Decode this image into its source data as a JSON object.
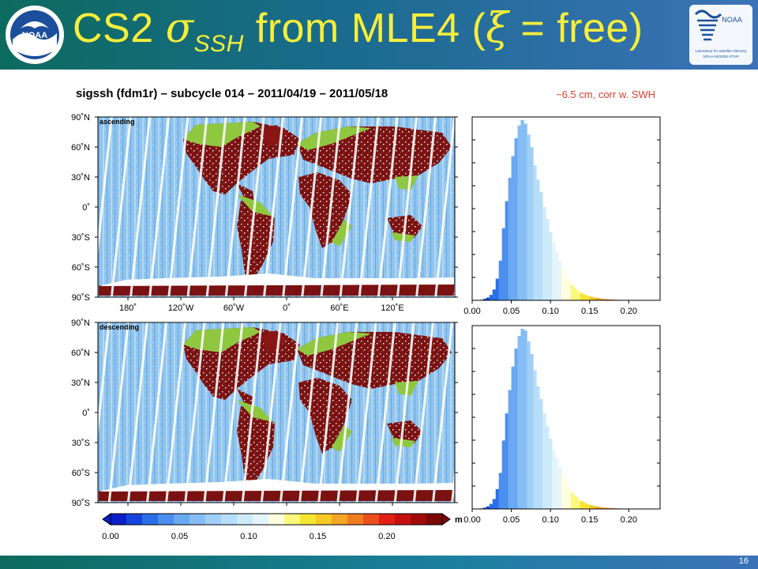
{
  "header": {
    "title_prefix": "CS2 ",
    "title_sigma": "σ",
    "title_sub": "SSH",
    "title_mid": " from MLE4 (",
    "title_xi": "ξ",
    "title_suffix": " = free)",
    "logo_left": "noaa-emblem-icon",
    "logo_right_text": "NOAA",
    "logo_right_caption1": "Laboratory for Satellite Altimetry",
    "logo_right_caption2": "NOAA-NESDIS-STAR"
  },
  "figure_title": "sigssh (fdm1r) – subcycle 014 – 2011/04/19 – 2011/05/18",
  "note": "~6.5 cm, corr w. SWH",
  "page_number": "16",
  "maps": [
    {
      "label": "ascending"
    },
    {
      "label": "descending"
    }
  ],
  "lat_ticks": [
    "90˚N",
    "60˚N",
    "30˚N",
    "0˚",
    "30˚S",
    "60˚S",
    "90˚S"
  ],
  "lon_ticks": [
    "180˚",
    "120˚W",
    "60˚W",
    "0˚",
    "60˚E",
    "120˚E"
  ],
  "colorbar": {
    "unit": "m",
    "ticks": [
      "0.00",
      "0.05",
      "0.10",
      "0.15",
      "0.20"
    ],
    "colors": [
      "#0b1fc9",
      "#1444dd",
      "#2a6ee8",
      "#4a8fee",
      "#6aa8f1",
      "#86bdf4",
      "#9fcff6",
      "#b6def8",
      "#cdeaf9",
      "#e3f5fb",
      "#ffffe0",
      "#fbf87a",
      "#f7e533",
      "#f6c926",
      "#f3a523",
      "#ef7d20",
      "#ea4f1b",
      "#e01f16",
      "#c50f10",
      "#a10a0b",
      "#7d0606"
    ]
  },
  "chart_data": [
    {
      "type": "bar",
      "title": "",
      "panel": "ascending",
      "xlabel": "",
      "ylabel": "",
      "xlim": [
        0.0,
        0.24
      ],
      "x_ticks": [
        "0.00",
        "0.05",
        "0.10",
        "0.15",
        "0.20"
      ],
      "bin_width": 0.004,
      "x": [
        0.012,
        0.016,
        0.02,
        0.024,
        0.028,
        0.032,
        0.036,
        0.04,
        0.044,
        0.048,
        0.052,
        0.056,
        0.06,
        0.064,
        0.068,
        0.072,
        0.076,
        0.08,
        0.084,
        0.088,
        0.092,
        0.096,
        0.1,
        0.104,
        0.108,
        0.112,
        0.116,
        0.12,
        0.124,
        0.128,
        0.132,
        0.136,
        0.14,
        0.144,
        0.148,
        0.152,
        0.156,
        0.16,
        0.164,
        0.168,
        0.172,
        0.176,
        0.18,
        0.184,
        0.188,
        0.192,
        0.196,
        0.2
      ],
      "values": [
        0.3,
        0.8,
        1.5,
        3,
        6,
        12,
        22,
        40,
        55,
        68,
        80,
        90,
        97,
        100,
        98,
        92,
        85,
        75,
        67,
        60,
        52,
        45,
        38,
        32,
        27,
        22,
        18,
        14,
        11,
        8.5,
        6.5,
        5,
        4,
        3.2,
        2.5,
        2,
        1.6,
        1.3,
        1,
        0.8,
        0.6,
        0.5,
        0.4,
        0.3,
        0.25,
        0.2,
        0.15,
        0.1
      ]
    },
    {
      "type": "bar",
      "title": "",
      "panel": "descending",
      "xlabel": "",
      "ylabel": "",
      "xlim": [
        0.0,
        0.24
      ],
      "x_ticks": [
        "0.00",
        "0.05",
        "0.10",
        "0.15",
        "0.20"
      ],
      "bin_width": 0.004,
      "x": [
        0.012,
        0.016,
        0.02,
        0.024,
        0.028,
        0.032,
        0.036,
        0.04,
        0.044,
        0.048,
        0.052,
        0.056,
        0.06,
        0.064,
        0.068,
        0.072,
        0.076,
        0.08,
        0.084,
        0.088,
        0.092,
        0.096,
        0.1,
        0.104,
        0.108,
        0.112,
        0.116,
        0.12,
        0.124,
        0.128,
        0.132,
        0.136,
        0.14,
        0.144,
        0.148,
        0.152,
        0.156,
        0.16,
        0.164,
        0.168,
        0.172,
        0.176,
        0.18,
        0.184,
        0.188,
        0.192,
        0.196,
        0.2
      ],
      "values": [
        0.3,
        0.7,
        1.4,
        2.8,
        5.5,
        11,
        20,
        38,
        53,
        66,
        79,
        89,
        96,
        100,
        99,
        93,
        86,
        77,
        68,
        61,
        53,
        46,
        39,
        33,
        28,
        23,
        19,
        15,
        12,
        9,
        7,
        5.5,
        4.3,
        3.4,
        2.7,
        2.1,
        1.7,
        1.3,
        1,
        0.8,
        0.6,
        0.5,
        0.4,
        0.3,
        0.25,
        0.2,
        0.15,
        0.1
      ]
    }
  ]
}
